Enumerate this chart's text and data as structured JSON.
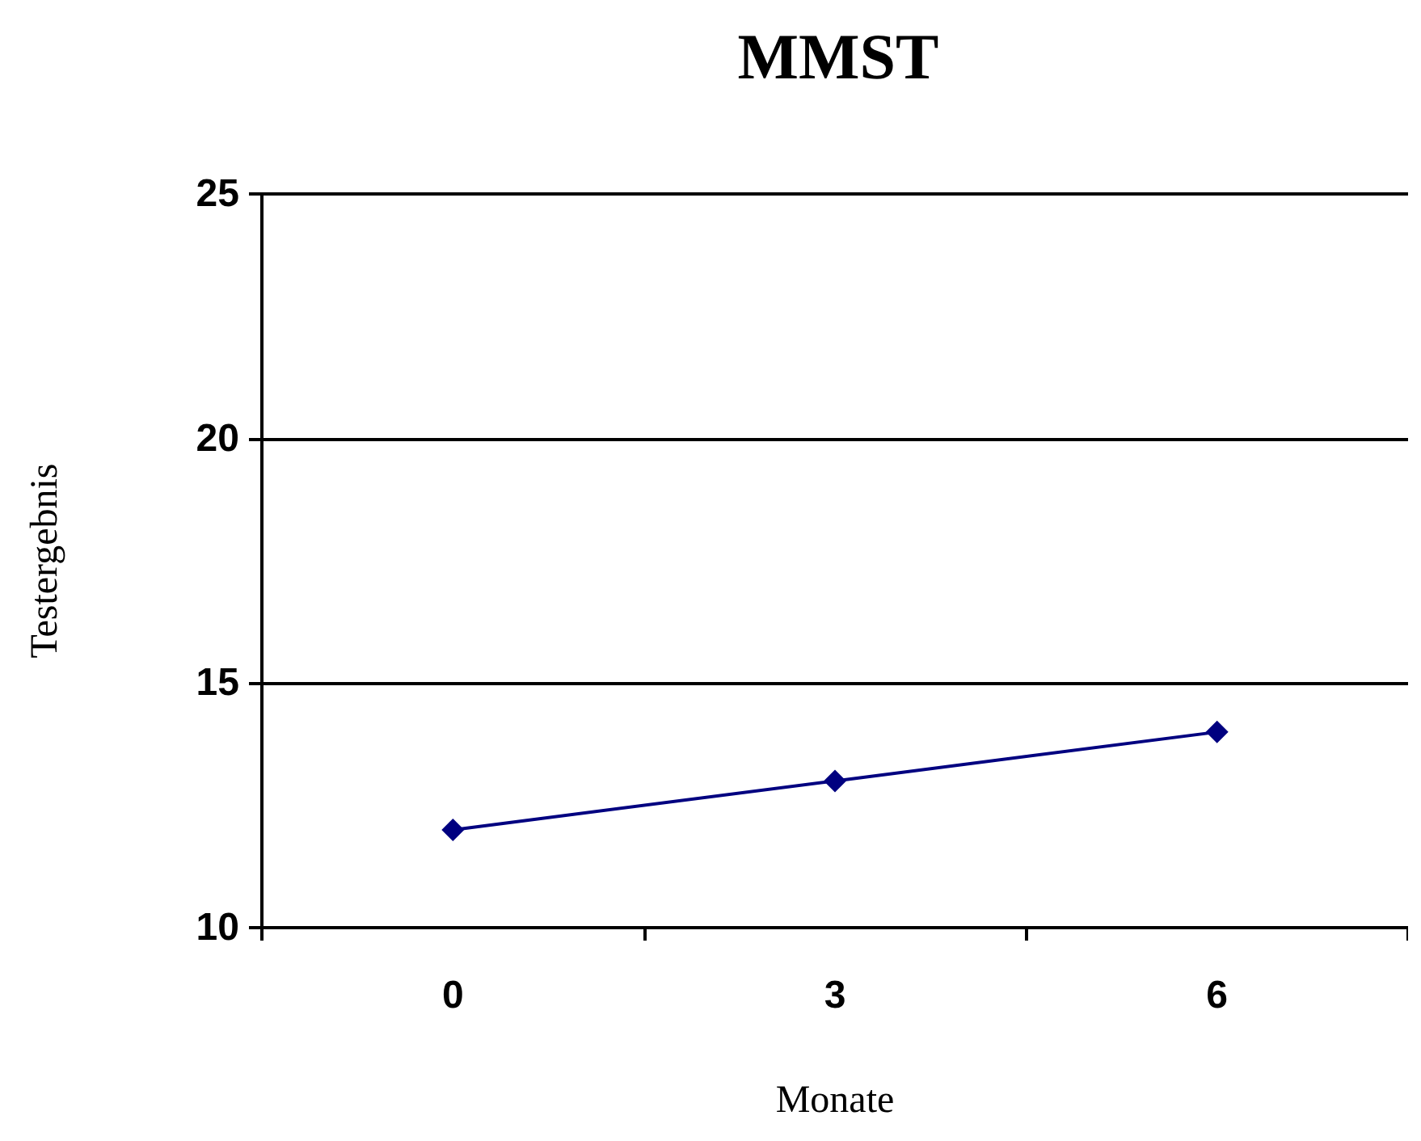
{
  "chart_data": {
    "type": "line",
    "title": "MMST",
    "xlabel": "Monate",
    "ylabel": "Testergebnis",
    "categories": [
      "0",
      "3",
      "6"
    ],
    "series": [
      {
        "color": "#000080",
        "values": [
          12,
          13,
          14
        ]
      }
    ],
    "ylim": [
      10,
      25
    ],
    "yticks": [
      10,
      15,
      20,
      25
    ],
    "grid": "y",
    "marker": "diamond",
    "line_style": "solid"
  }
}
